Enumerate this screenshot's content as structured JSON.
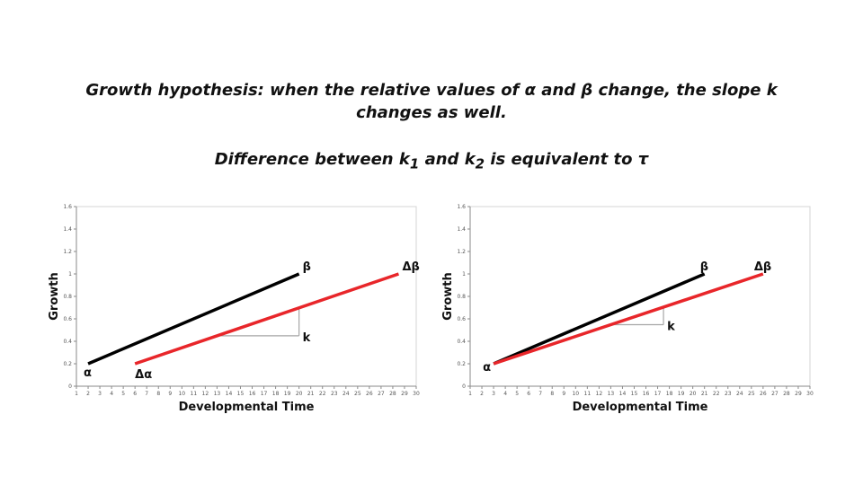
{
  "title": {
    "line1": "Growth hypothesis: when the relative values of α and β change, the slope k",
    "line2": "changes as well.",
    "subtitle_prefix": "Difference between k",
    "subtitle_sub1": "1",
    "subtitle_mid": " and k",
    "subtitle_sub2": "2",
    "subtitle_suffix": " is equivalent to τ"
  },
  "chart_data": [
    {
      "type": "line",
      "xlabel": "Developmental Time",
      "ylabel": "Growth",
      "xlim": [
        1,
        30
      ],
      "ylim": [
        0,
        1.6
      ],
      "xticks": [
        "1",
        "2",
        "3",
        "4",
        "5",
        "6",
        "7",
        "8",
        "9",
        "10",
        "11",
        "12",
        "13",
        "14",
        "15",
        "16",
        "17",
        "18",
        "19",
        "20",
        "21",
        "22",
        "23",
        "24",
        "25",
        "26",
        "27",
        "28",
        "29",
        "30"
      ],
      "yticks": [
        "0",
        "0.2",
        "0.4",
        "0.6",
        "0.8",
        "1",
        "1.2",
        "1.4",
        "1.6"
      ],
      "grid": false,
      "series": [
        {
          "color": "#000000",
          "x": [
            2,
            20
          ],
          "y": [
            0.2,
            1.0
          ]
        },
        {
          "color": "#e8262a",
          "x": [
            6,
            28.5
          ],
          "y": [
            0.2,
            1.0
          ]
        }
      ],
      "slope_marker": {
        "x_start": 13,
        "x_end": 20,
        "label": "k"
      },
      "annotations": [
        {
          "text": "α",
          "x": 2,
          "y": 0.2,
          "dx": -5,
          "dy": 14
        },
        {
          "text": "Δα",
          "x": 6,
          "y": 0.2,
          "dx": 0,
          "dy": 16
        },
        {
          "text": "β",
          "x": 20,
          "y": 1.0,
          "dx": 4,
          "dy": -4
        },
        {
          "text": "Δβ",
          "x": 28.5,
          "y": 1.0,
          "dx": 4,
          "dy": -4
        }
      ]
    },
    {
      "type": "line",
      "xlabel": "Developmental Time",
      "ylabel": "Growth",
      "xlim": [
        1,
        30
      ],
      "ylim": [
        0,
        1.6
      ],
      "xticks": [
        "1",
        "2",
        "3",
        "4",
        "5",
        "6",
        "7",
        "8",
        "9",
        "10",
        "11",
        "12",
        "13",
        "14",
        "15",
        "16",
        "17",
        "18",
        "19",
        "20",
        "21",
        "22",
        "23",
        "24",
        "25",
        "26",
        "27",
        "28",
        "29",
        "30"
      ],
      "yticks": [
        "0",
        "0.2",
        "0.4",
        "0.6",
        "0.8",
        "1",
        "1.2",
        "1.4",
        "1.6"
      ],
      "grid": false,
      "series": [
        {
          "color": "#000000",
          "x": [
            3,
            21
          ],
          "y": [
            0.2,
            1.0
          ]
        },
        {
          "color": "#e8262a",
          "x": [
            3,
            26
          ],
          "y": [
            0.2,
            1.0
          ]
        }
      ],
      "slope_marker": {
        "x_start": 13,
        "x_end": 17.5,
        "label": "k"
      },
      "annotations": [
        {
          "text": "α",
          "x": 3,
          "y": 0.2,
          "dx": -12,
          "dy": 8
        },
        {
          "text": "β",
          "x": 21,
          "y": 1.0,
          "dx": -5,
          "dy": -4
        },
        {
          "text": "Δβ",
          "x": 26,
          "y": 1.0,
          "dx": -10,
          "dy": -4
        }
      ]
    }
  ]
}
